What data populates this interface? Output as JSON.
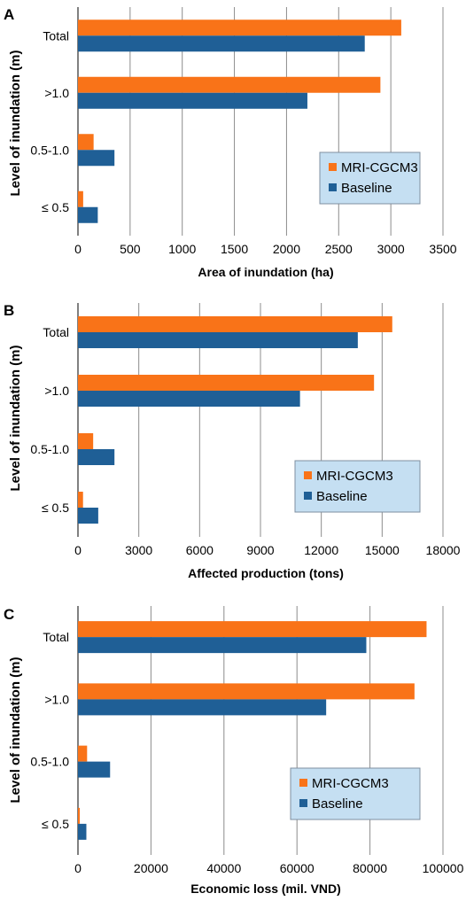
{
  "colors": {
    "mri": "#f97318",
    "baseline": "#1f5f96",
    "legend_bg": "#c5dff2",
    "legend_border": "#7f8fa0",
    "grid": "#8c8c8c"
  },
  "chart_data": [
    {
      "type": "bar",
      "orientation": "horizontal",
      "panel_letter": "A",
      "categories": [
        "Total",
        ">1.0",
        "0.5-1.0",
        "≤ 0.5"
      ],
      "series": [
        {
          "name": "MRI-CGCM3",
          "values": [
            3100,
            2900,
            150,
            50
          ]
        },
        {
          "name": "Baseline",
          "values": [
            2750,
            2200,
            350,
            190
          ]
        }
      ],
      "xlabel": "Area of inundation (ha)",
      "ylabel": "Level of inundation (m)",
      "xlim": [
        0,
        3500
      ],
      "xticks": [
        0,
        500,
        1000,
        1500,
        2000,
        2500,
        3000,
        3500
      ],
      "grid": "vertical",
      "legend_position": "right"
    },
    {
      "type": "bar",
      "orientation": "horizontal",
      "panel_letter": "B",
      "categories": [
        "Total",
        ">1.0",
        "0.5-1.0",
        "≤ 0.5"
      ],
      "series": [
        {
          "name": "MRI-CGCM3",
          "values": [
            15500,
            14600,
            750,
            250
          ]
        },
        {
          "name": "Baseline",
          "values": [
            13800,
            10950,
            1800,
            1000
          ]
        }
      ],
      "xlabel": "Affected production (tons)",
      "ylabel": "Level of inundation (m)",
      "xlim": [
        0,
        18000
      ],
      "xticks": [
        0,
        3000,
        6000,
        9000,
        12000,
        15000,
        18000
      ],
      "grid": "vertical",
      "legend_position": "right"
    },
    {
      "type": "bar",
      "orientation": "horizontal",
      "panel_letter": "C",
      "categories": [
        "Total",
        ">1.0",
        "0.5-1.0",
        "≤ 0.5"
      ],
      "series": [
        {
          "name": "MRI-CGCM3",
          "values": [
            95500,
            92200,
            2500,
            500
          ]
        },
        {
          "name": "Baseline",
          "values": [
            79000,
            68000,
            8800,
            2300
          ]
        }
      ],
      "xlabel": "Economic loss (mil. VND)",
      "ylabel": "Level of inundation (m)",
      "xlim": [
        0,
        100000
      ],
      "xticks": [
        0,
        20000,
        40000,
        60000,
        80000,
        100000
      ],
      "grid": "vertical",
      "legend_position": "right"
    }
  ]
}
